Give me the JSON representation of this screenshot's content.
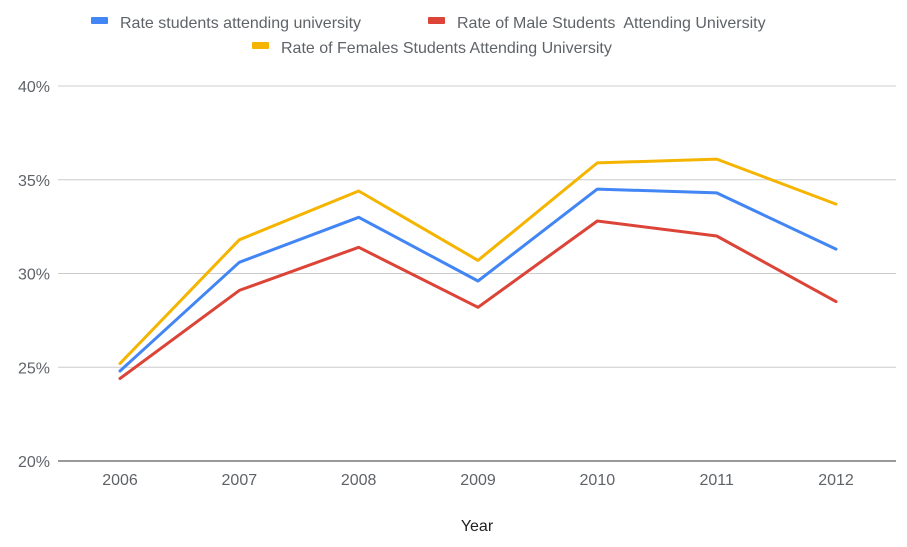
{
  "chart_data": {
    "type": "line",
    "title": "",
    "xlabel": "Year",
    "ylabel": "",
    "categories": [
      "2006",
      "2007",
      "2008",
      "2009",
      "2010",
      "2011",
      "2012"
    ],
    "ylim": [
      0.2,
      0.4
    ],
    "yticks": [
      0.2,
      0.25,
      0.3,
      0.35,
      0.4
    ],
    "ytick_labels": [
      "20%",
      "25%",
      "30%",
      "35%",
      "40%"
    ],
    "grid": true,
    "legend_position": "top",
    "series": [
      {
        "name": "Rate students attending university",
        "color": "#4285f4",
        "values": [
          0.248,
          0.306,
          0.33,
          0.296,
          0.345,
          0.343,
          0.313
        ]
      },
      {
        "name": "Rate of Male Students  Attending University",
        "color": "#db4437",
        "values": [
          0.244,
          0.291,
          0.314,
          0.282,
          0.328,
          0.32,
          0.285
        ]
      },
      {
        "name": "Rate of Females Students Attending University",
        "color": "#f4b400",
        "values": [
          0.252,
          0.318,
          0.344,
          0.307,
          0.359,
          0.361,
          0.337
        ]
      }
    ]
  }
}
